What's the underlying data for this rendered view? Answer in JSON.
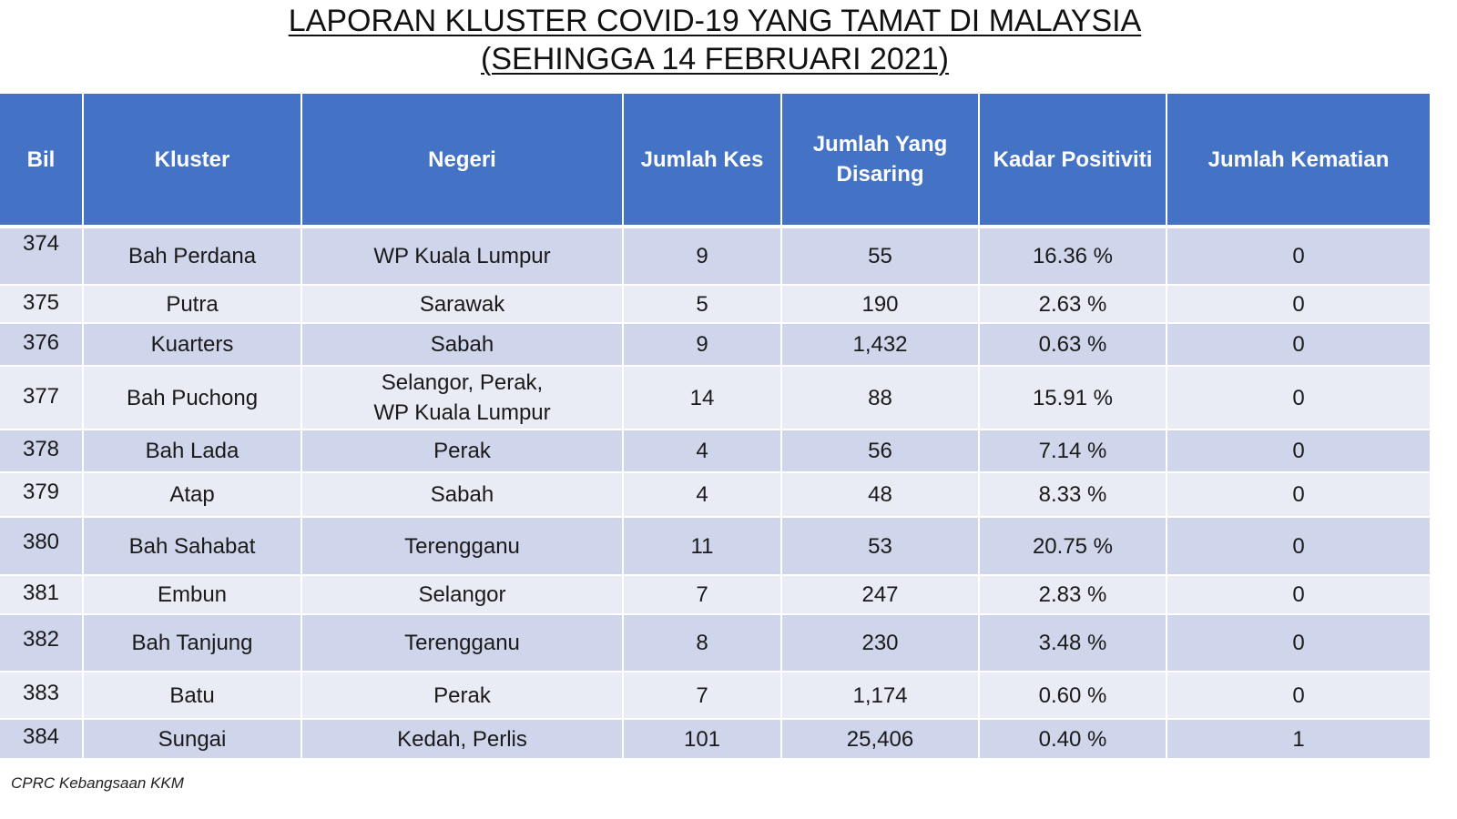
{
  "title": {
    "line1": "LAPORAN KLUSTER COVID-19 YANG TAMAT DI MALAYSIA",
    "line2": "(SEHINGGA 14 FEBRUARI 2021)"
  },
  "table": {
    "headers": [
      "Bil",
      "Kluster",
      "Negeri",
      "Jumlah Kes",
      "Jumlah Yang Disaring",
      "Kadar Positiviti",
      "Jumlah Kematian"
    ],
    "rows": [
      {
        "bil": "374",
        "kluster": "Bah Perdana",
        "negeri": "WP Kuala Lumpur",
        "kes": "9",
        "disaring": "55",
        "positiviti": "16.36 %",
        "kematian": "0"
      },
      {
        "bil": "375",
        "kluster": "Putra",
        "negeri": "Sarawak",
        "kes": "5",
        "disaring": "190",
        "positiviti": "2.63 %",
        "kematian": "0"
      },
      {
        "bil": "376",
        "kluster": "Kuarters",
        "negeri": "Sabah",
        "kes": "9",
        "disaring": "1,432",
        "positiviti": "0.63 %",
        "kematian": "0"
      },
      {
        "bil": "377",
        "kluster": "Bah Puchong",
        "negeri": "Selangor, Perak,\nWP Kuala Lumpur",
        "kes": "14",
        "disaring": "88",
        "positiviti": "15.91 %",
        "kematian": "0"
      },
      {
        "bil": "378",
        "kluster": "Bah Lada",
        "negeri": "Perak",
        "kes": "4",
        "disaring": "56",
        "positiviti": "7.14 %",
        "kematian": "0"
      },
      {
        "bil": "379",
        "kluster": "Atap",
        "negeri": "Sabah",
        "kes": "4",
        "disaring": "48",
        "positiviti": "8.33 %",
        "kematian": "0"
      },
      {
        "bil": "380",
        "kluster": "Bah Sahabat",
        "negeri": "Terengganu",
        "kes": "11",
        "disaring": "53",
        "positiviti": "20.75 %",
        "kematian": "0"
      },
      {
        "bil": "381",
        "kluster": "Embun",
        "negeri": "Selangor",
        "kes": "7",
        "disaring": "247",
        "positiviti": "2.83 %",
        "kematian": "0"
      },
      {
        "bil": "382",
        "kluster": "Bah Tanjung",
        "negeri": "Terengganu",
        "kes": "8",
        "disaring": "230",
        "positiviti": "3.48 %",
        "kematian": "0"
      },
      {
        "bil": "383",
        "kluster": "Batu",
        "negeri": "Perak",
        "kes": "7",
        "disaring": "1,174",
        "positiviti": "0.60 %",
        "kematian": "0"
      },
      {
        "bil": "384",
        "kluster": "Sungai",
        "negeri": "Kedah, Perlis",
        "kes": "101",
        "disaring": "25,406",
        "positiviti": "0.40 %",
        "kematian": "1"
      }
    ]
  },
  "footer": "CPRC Kebangsaan KKM",
  "colors": {
    "header_bg": "#4472c4",
    "row_odd_bg": "#cfd5ea",
    "row_even_bg": "#e9ebf5"
  }
}
